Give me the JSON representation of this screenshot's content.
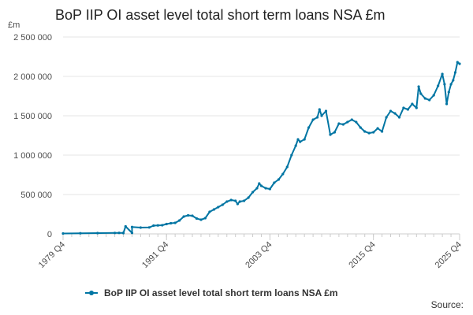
{
  "title": "BoP IIP OI asset level total short term loans NSA £m",
  "source_label": "Source:",
  "colors": {
    "series": "#0075a3",
    "grid": "#e6e6e6",
    "axis": "#cccccc"
  },
  "chart_data": {
    "type": "line",
    "title": "BoP IIP OI asset level total short term loans NSA £m",
    "unit_label": "£m",
    "xlabel": "",
    "ylabel": "",
    "ylim": [
      0,
      2500000
    ],
    "y_ticks": [
      {
        "value": 0,
        "label": "0"
      },
      {
        "value": 500000,
        "label": "500 000"
      },
      {
        "value": 1000000,
        "label": "1 000 000"
      },
      {
        "value": 1500000,
        "label": "1 500 000"
      },
      {
        "value": 2000000,
        "label": "2 000 000"
      },
      {
        "value": 2500000,
        "label": "2 500 000"
      }
    ],
    "x_range": [
      "1979 Q4",
      "2025 Q4"
    ],
    "x_ticks": [
      "1979 Q4",
      "1991 Q4",
      "2003 Q4",
      "2015 Q4",
      "2025 Q4"
    ],
    "grid": true,
    "legend_position": "bottom",
    "series": [
      {
        "name": "BoP IIP OI asset level total short term loans NSA £m",
        "color": "#0075a3",
        "points": [
          [
            "1979 Q4",
            5000
          ],
          [
            "1981 Q4",
            8000
          ],
          [
            "1983 Q4",
            10000
          ],
          [
            "1985 Q4",
            12000
          ],
          [
            "1986 Q4",
            14000
          ],
          [
            "1987 Q4",
            12000
          ],
          [
            "1986 Q2",
            13000
          ],
          [
            "1986 Q4",
            10000
          ],
          [
            "1987 Q1",
            95000
          ],
          [
            "1987 Q4",
            88000
          ],
          [
            "1988 Q4",
            80000
          ],
          [
            "1989 Q4",
            82000
          ],
          [
            "1990 Q2",
            105000
          ],
          [
            "1990 Q4",
            108000
          ],
          [
            "1991 Q2",
            110000
          ],
          [
            "1991 Q4",
            125000
          ],
          [
            "1992 Q2",
            135000
          ],
          [
            "1992 Q4",
            140000
          ],
          [
            "1993 Q2",
            170000
          ],
          [
            "1993 Q4",
            220000
          ],
          [
            "1994 Q2",
            235000
          ],
          [
            "1994 Q4",
            230000
          ],
          [
            "1995 Q2",
            195000
          ],
          [
            "1995 Q4",
            180000
          ],
          [
            "1996 Q2",
            200000
          ],
          [
            "1996 Q4",
            280000
          ],
          [
            "1997 Q2",
            310000
          ],
          [
            "1997 Q4",
            340000
          ],
          [
            "1998 Q2",
            370000
          ],
          [
            "1998 Q4",
            410000
          ],
          [
            "1999 Q2",
            430000
          ],
          [
            "1999 Q4",
            420000
          ],
          [
            "2000 Q1",
            380000
          ],
          [
            "2000 Q2",
            410000
          ],
          [
            "2000 Q4",
            420000
          ],
          [
            "2001 Q2",
            460000
          ],
          [
            "2001 Q4",
            530000
          ],
          [
            "2002 Q2",
            580000
          ],
          [
            "2002 Q3",
            640000
          ],
          [
            "2002 Q4",
            610000
          ],
          [
            "2003 Q2",
            580000
          ],
          [
            "2003 Q4",
            570000
          ],
          [
            "2004 Q2",
            650000
          ],
          [
            "2004 Q4",
            690000
          ],
          [
            "2005 Q2",
            760000
          ],
          [
            "2005 Q4",
            850000
          ],
          [
            "2006 Q2",
            1000000
          ],
          [
            "2006 Q4",
            1120000
          ],
          [
            "2007 Q1",
            1200000
          ],
          [
            "2007 Q2",
            1170000
          ],
          [
            "2007 Q4",
            1200000
          ],
          [
            "2008 Q2",
            1350000
          ],
          [
            "2008 Q4",
            1450000
          ],
          [
            "2009 Q2",
            1480000
          ],
          [
            "2009 Q3",
            1580000
          ],
          [
            "2009 Q4",
            1500000
          ],
          [
            "2010 Q2",
            1560000
          ],
          [
            "2010 Q4",
            1260000
          ],
          [
            "2011 Q2",
            1290000
          ],
          [
            "2011 Q4",
            1400000
          ],
          [
            "2012 Q2",
            1390000
          ],
          [
            "2012 Q4",
            1420000
          ],
          [
            "2013 Q2",
            1450000
          ],
          [
            "2013 Q4",
            1420000
          ],
          [
            "2014 Q2",
            1350000
          ],
          [
            "2014 Q4",
            1300000
          ],
          [
            "2015 Q2",
            1280000
          ],
          [
            "2015 Q4",
            1290000
          ],
          [
            "2016 Q2",
            1340000
          ],
          [
            "2016 Q4",
            1300000
          ],
          [
            "2017 Q2",
            1480000
          ],
          [
            "2017 Q4",
            1560000
          ],
          [
            "2018 Q2",
            1530000
          ],
          [
            "2018 Q4",
            1480000
          ],
          [
            "2019 Q2",
            1600000
          ],
          [
            "2019 Q4",
            1580000
          ],
          [
            "2020 Q2",
            1650000
          ],
          [
            "2020 Q4",
            1600000
          ],
          [
            "2021 Q1",
            1870000
          ],
          [
            "2021 Q2",
            1780000
          ],
          [
            "2021 Q4",
            1720000
          ],
          [
            "2022 Q2",
            1700000
          ],
          [
            "2022 Q4",
            1760000
          ],
          [
            "2023 Q2",
            1880000
          ],
          [
            "2023 Q4",
            2030000
          ],
          [
            "2024 Q1",
            1900000
          ],
          [
            "2024 Q2",
            1650000
          ],
          [
            "2024 Q3",
            1800000
          ],
          [
            "2024 Q4",
            1900000
          ],
          [
            "2025 Q1",
            1950000
          ],
          [
            "2025 Q2",
            2050000
          ],
          [
            "2025 Q3",
            2180000
          ],
          [
            "2025 Q4",
            2160000
          ]
        ]
      }
    ]
  }
}
